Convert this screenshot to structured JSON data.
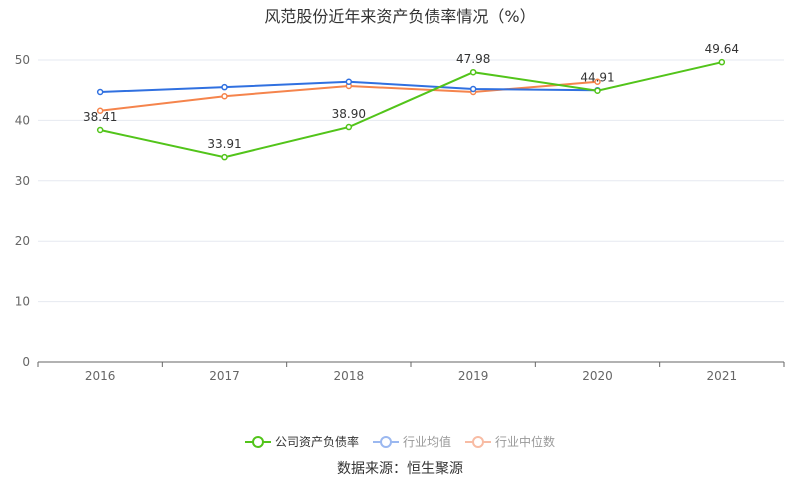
{
  "chart_data": {
    "type": "line",
    "title": "风范股份近年来资产负债率情况（%）",
    "categories": [
      "2016",
      "2017",
      "2018",
      "2019",
      "2020",
      "2021"
    ],
    "ylim": [
      0,
      50
    ],
    "yticks": [
      0,
      10,
      20,
      30,
      40,
      50
    ],
    "grid": true,
    "legend_position": "bottom",
    "series": [
      {
        "name": "公司资产负债率",
        "color": "#52c41a",
        "values": [
          38.41,
          33.91,
          38.9,
          47.98,
          44.91,
          49.64
        ],
        "labels": [
          "38.41",
          "33.91",
          "38.90",
          "47.98",
          "44.91",
          "49.64"
        ],
        "active": true
      },
      {
        "name": "行业均值",
        "color": "#3070e0",
        "legend_color": "#9bb8f0",
        "values": [
          44.7,
          45.5,
          46.4,
          45.2,
          45.0,
          null
        ],
        "active": false
      },
      {
        "name": "行业中位数",
        "color": "#f5844c",
        "legend_color": "#f8bca4",
        "values": [
          41.6,
          44.0,
          45.7,
          44.7,
          46.4,
          null
        ],
        "active": false
      }
    ]
  },
  "source": "数据来源：恒生聚源"
}
